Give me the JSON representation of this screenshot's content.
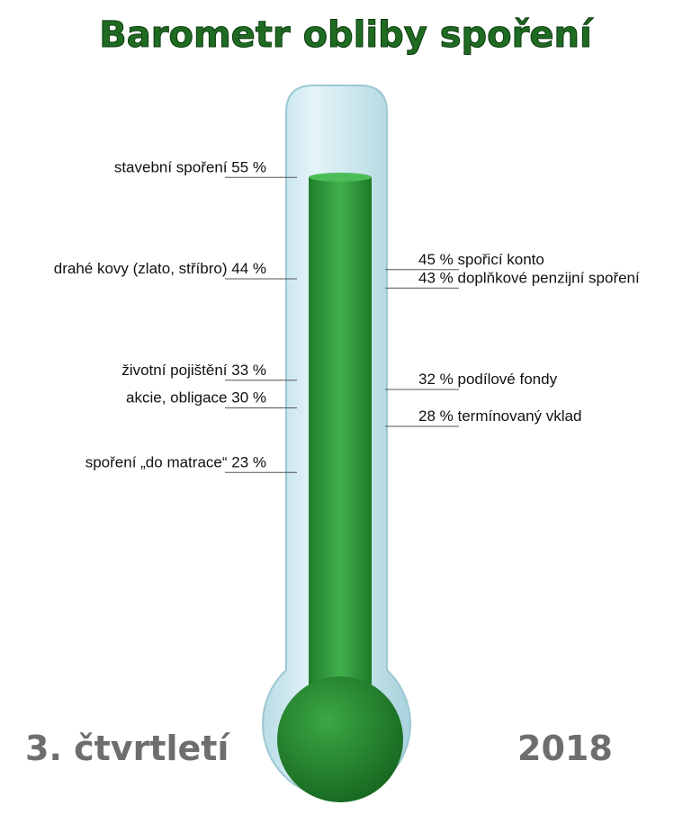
{
  "chart_data": {
    "type": "thermometer",
    "title": "Barometr obliby spoření",
    "footer_left": "3. čtvrtletí",
    "footer_right": "2018",
    "color": "#2f9a3b",
    "left": {
      "categories": [
        "stavební spoření",
        "drahé kovy (zlato, stříbro)",
        "životní pojištění",
        "akcie, obligace",
        "spoření „do matrace“"
      ],
      "values": [
        55,
        44,
        33,
        30,
        23
      ],
      "value_labels": [
        "55 %",
        "44 %",
        "33 %",
        "30 %",
        "23 %"
      ]
    },
    "right": {
      "categories": [
        "spořicí konto",
        "doplňkové penzijní spoření",
        "podílové fondy",
        "termínovaný vklad"
      ],
      "values": [
        45,
        43,
        32,
        28
      ],
      "value_labels": [
        "45 %",
        "43 %",
        "32 %",
        "28 %"
      ]
    }
  }
}
